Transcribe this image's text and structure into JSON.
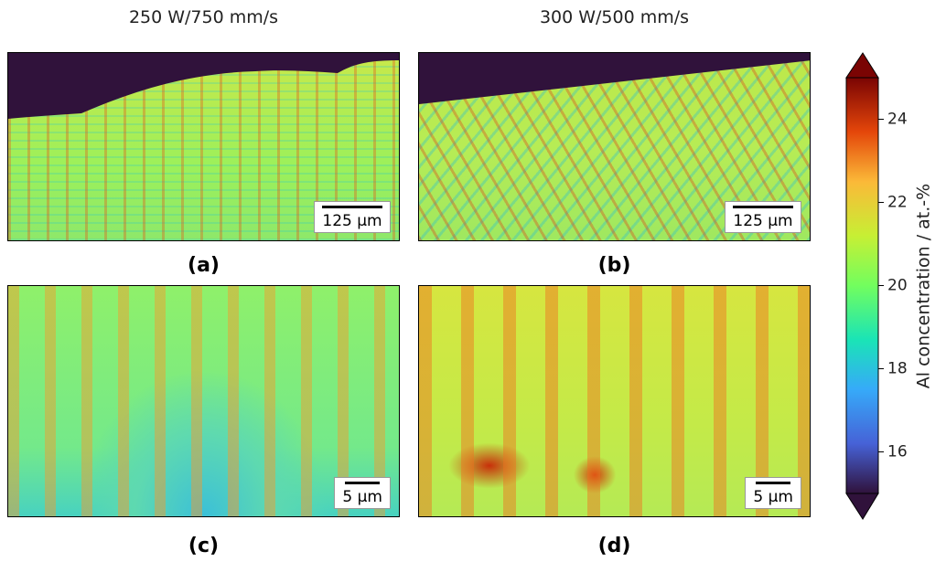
{
  "columns": [
    "250 W/750 mm/s",
    "300 W/500 mm/s"
  ],
  "panels": [
    {
      "label": "(a)",
      "scale_bar": "125 µm"
    },
    {
      "label": "(b)",
      "scale_bar": "125 µm"
    },
    {
      "label": "(c)",
      "scale_bar": "5 µm"
    },
    {
      "label": "(d)",
      "scale_bar": "5 µm"
    }
  ],
  "colorbar": {
    "label": "Al concentration / at.-%",
    "lim": [
      15,
      25
    ],
    "ticks": [
      16,
      18,
      20,
      22,
      24
    ]
  }
}
